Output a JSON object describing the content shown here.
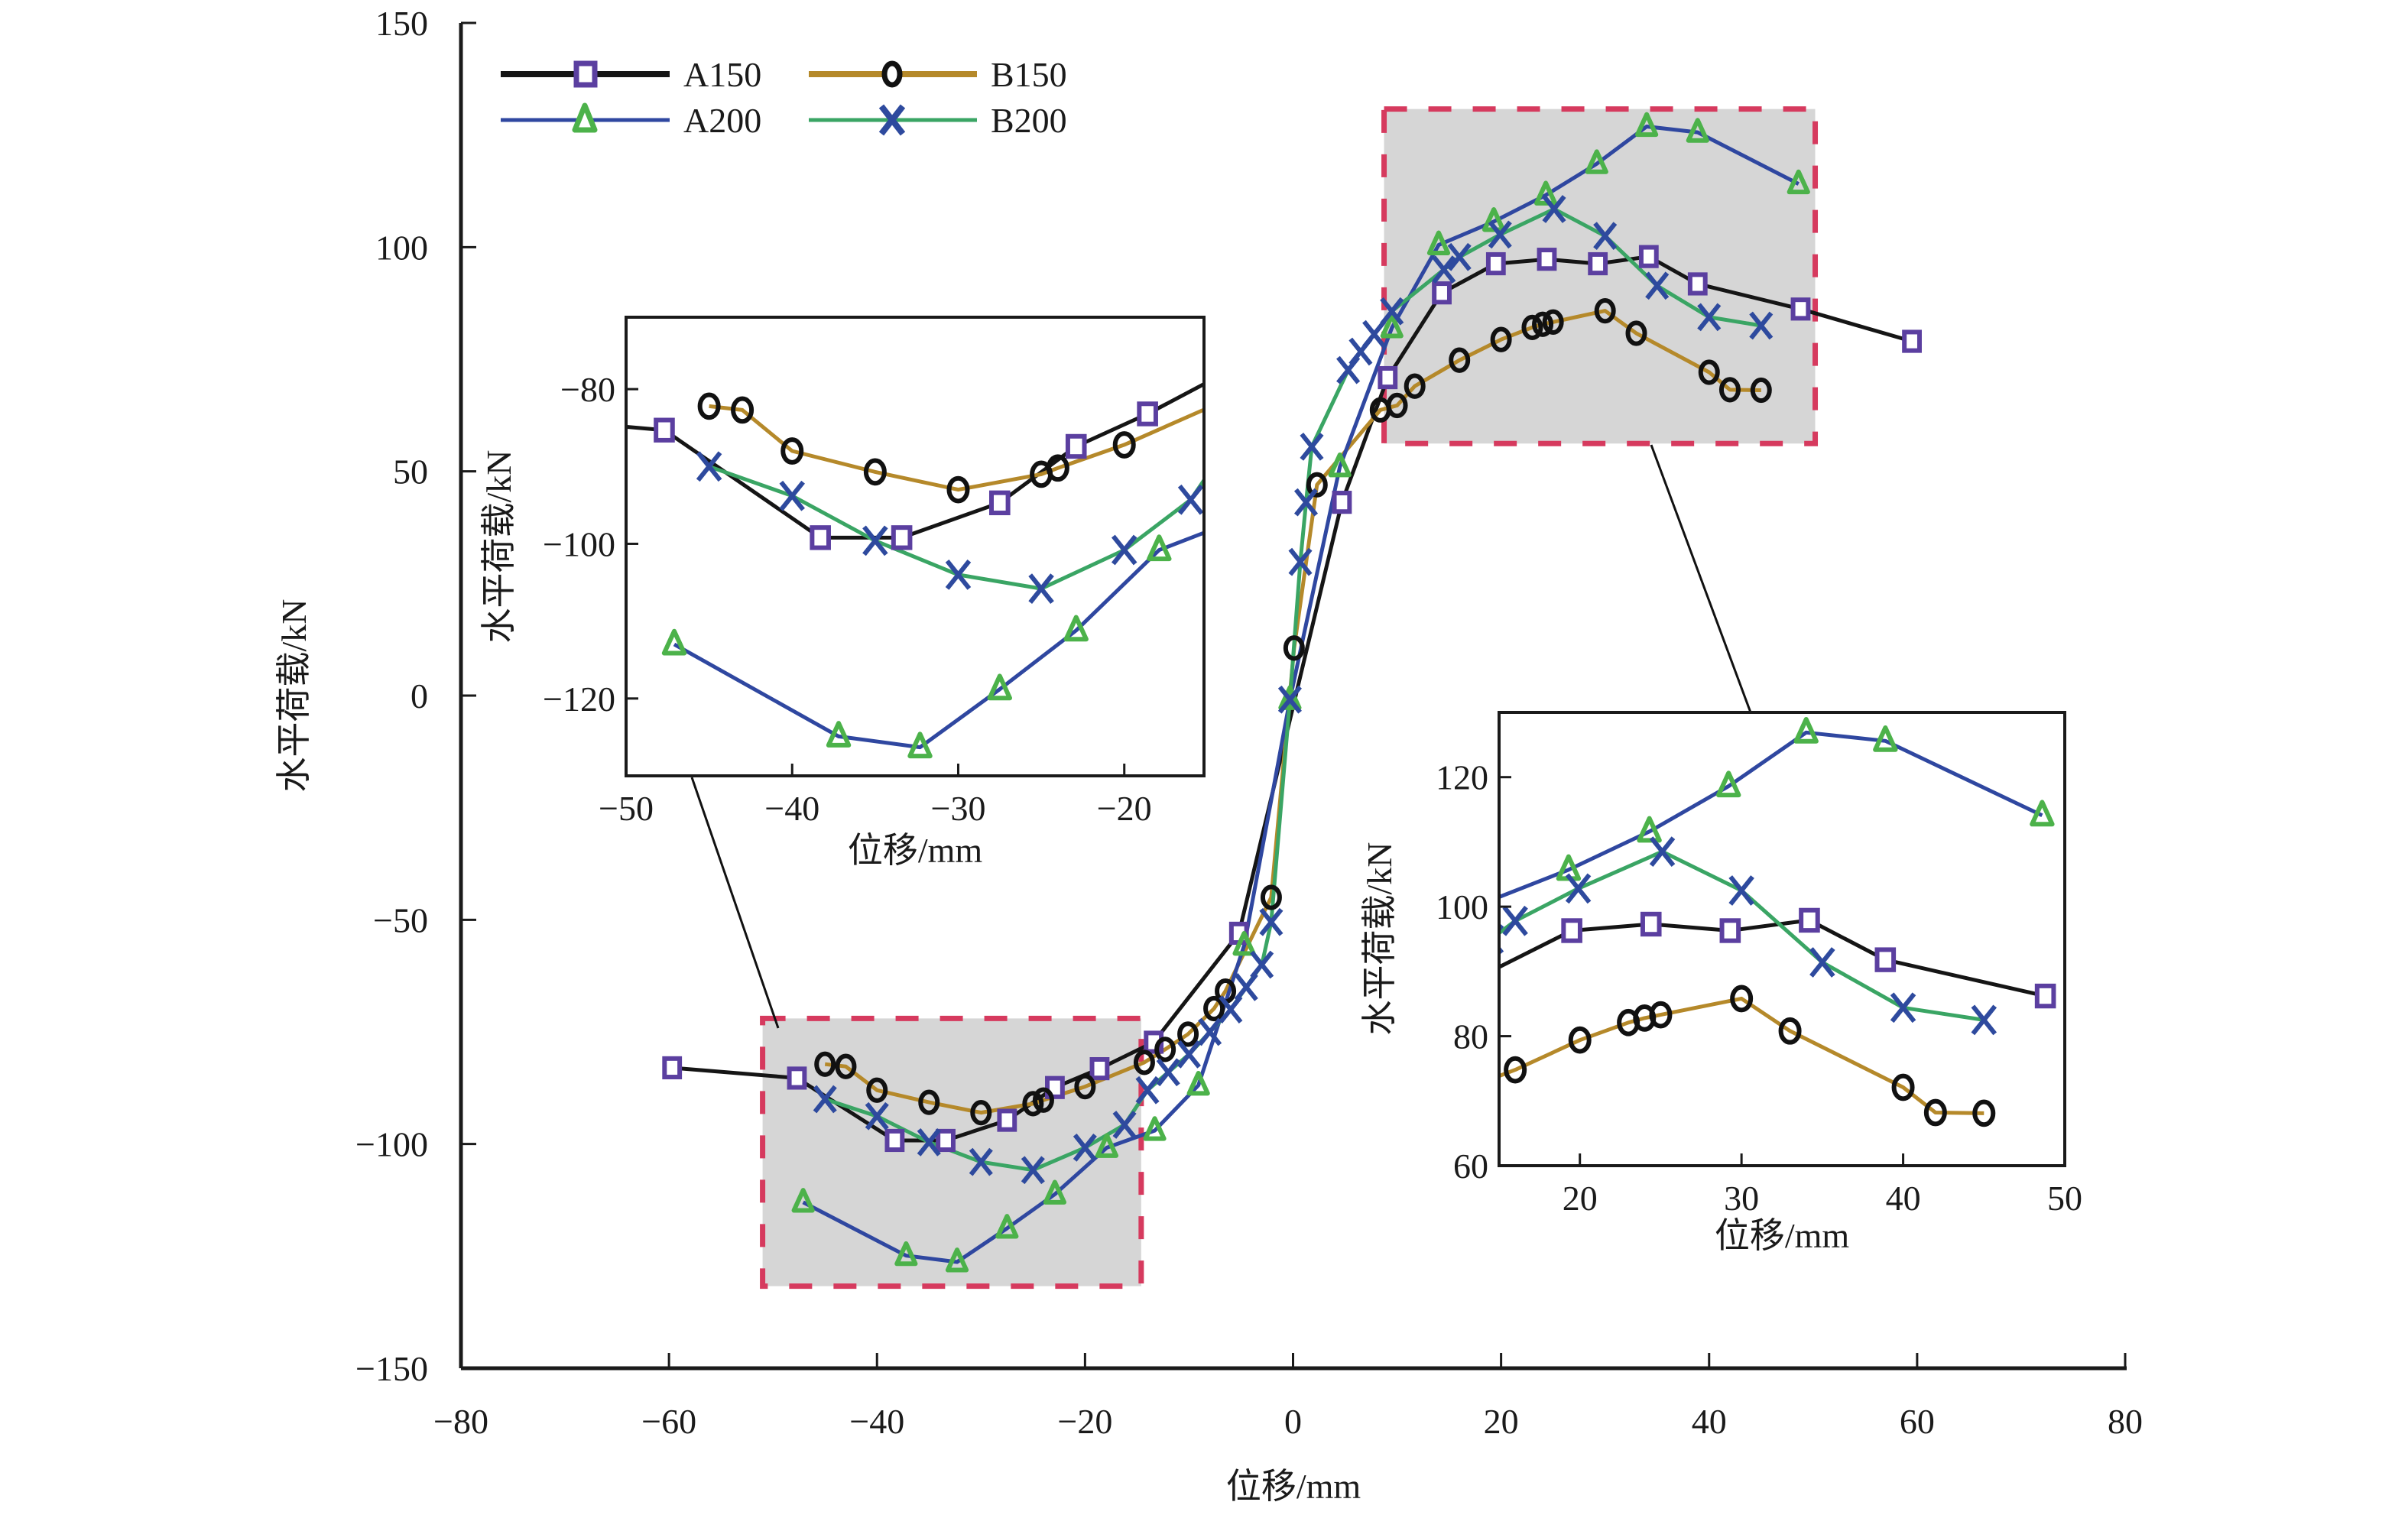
{
  "chart_data": {
    "type": "line",
    "title": "",
    "xlabel": "位移/mm",
    "ylabel": "水平荷载/kN",
    "xlim": [
      -80,
      80
    ],
    "ylim": [
      -150,
      150
    ],
    "xticks": [
      -80,
      -60,
      -40,
      -20,
      0,
      20,
      40,
      60,
      80
    ],
    "yticks": [
      -150,
      -100,
      -50,
      0,
      50,
      100,
      150
    ],
    "xtick_labels": [
      "−80",
      "−60",
      "−40",
      "−20",
      "0",
      "20",
      "40",
      "60",
      "80"
    ],
    "ytick_labels": [
      "−150",
      "−100",
      "−50",
      "0",
      "50",
      "100",
      "150"
    ],
    "grid": false,
    "legend": {
      "placement": "top-left",
      "columns": 2,
      "entries": [
        "A150",
        "B150",
        "A200",
        "B200"
      ]
    },
    "series": [
      {
        "name": "A150",
        "line_color": "#151515",
        "marker": "square",
        "marker_color": "#5b3fa0",
        "x": [
          -59.7,
          -47.7,
          -38.3,
          -33.4,
          -27.5,
          -22.9,
          -18.6,
          -13.4,
          -5.2,
          4.7,
          9.1,
          14.3,
          19.5,
          24.4,
          29.3,
          34.2,
          38.9,
          48.8,
          59.5
        ],
        "y": [
          -83,
          -85.3,
          -99.2,
          -99.2,
          -94.7,
          -87.4,
          -83.2,
          -77.3,
          -53,
          43.1,
          70.9,
          89.8,
          96.3,
          97.3,
          96.3,
          97.9,
          91.8,
          86.2,
          79
        ]
      },
      {
        "name": "B150",
        "line_color": "#b5892a",
        "marker": "circle",
        "marker_color": "#111111",
        "x": [
          -45,
          -43,
          -40,
          -35,
          -30,
          -25,
          -24,
          -20,
          -14.3,
          -12.3,
          -10.1,
          -7.6,
          -6.5,
          -2.1,
          0.1,
          2.3,
          8.4,
          10,
          11.7,
          16,
          20,
          23,
          24,
          25,
          30,
          33,
          40,
          42,
          45
        ],
        "y": [
          -82.2,
          -82.7,
          -88,
          -90.7,
          -93,
          -91,
          -90.2,
          -87.2,
          -81.8,
          -78.9,
          -75.5,
          -69.8,
          -65.9,
          -45,
          10.6,
          47,
          63.7,
          64.7,
          69,
          74.8,
          79.4,
          82.1,
          82.8,
          83.3,
          85.8,
          80.8,
          72.1,
          68.2,
          68.1
        ]
      },
      {
        "name": "A200",
        "line_color": "#2f47a0",
        "marker": "triangle",
        "marker_color": "#4cb24a",
        "x": [
          -47.1,
          -37.2,
          -32.3,
          -27.5,
          -22.9,
          -17.9,
          -13.3,
          -9.1,
          -4.7,
          -0.3,
          4.5,
          9.5,
          14,
          19.3,
          24.3,
          29.2,
          34,
          38.9,
          48.6
        ],
        "y": [
          -113,
          -124.9,
          -126.3,
          -118.8,
          -111.2,
          -100.8,
          -97,
          -86.9,
          -55.7,
          -0.9,
          51,
          82,
          100.5,
          105.7,
          111.6,
          118.6,
          126.9,
          125.6,
          114.1
        ]
      },
      {
        "name": "B200",
        "line_color": "#3aa564",
        "marker": "x",
        "marker_color": "#2e4a9e",
        "x": [
          -45,
          -40,
          -35,
          -30,
          -25,
          -20,
          -16.2,
          -14,
          -12,
          -10,
          -8,
          -6,
          -4.5,
          -3,
          -2.1,
          -0.3,
          0.7,
          1.25,
          1.8,
          5.3,
          6.5,
          7.8,
          9.5,
          14.5,
          16,
          19.9,
          25.1,
          30,
          35,
          40,
          45
        ],
        "y": [
          -90,
          -93.8,
          -99.6,
          -104,
          -105.8,
          -100.8,
          -95.7,
          -88,
          -84,
          -80,
          -75,
          -70,
          -65,
          -60,
          -50.5,
          -0.9,
          29.8,
          43.1,
          55.5,
          72.6,
          76.7,
          80.6,
          85.7,
          95,
          97.8,
          102.8,
          108.5,
          102.5,
          91.4,
          84.4,
          82.5
        ]
      }
    ],
    "zoom_regions": [
      {
        "name": "negative-peak-region",
        "xlim": [
          -51,
          -14.6
        ],
        "ylim": [
          -131.7,
          -72
        ],
        "highlight_color": "#d63a5e",
        "fill_color": "#d6d6d6"
      },
      {
        "name": "positive-peak-region",
        "xlim": [
          8.75,
          50.2
        ],
        "ylim": [
          56.2,
          130.8
        ],
        "highlight_color": "#d63a5e",
        "fill_color": "#d6d6d6"
      }
    ],
    "insets": [
      {
        "name": "inset-negative",
        "xlabel": "位移/mm",
        "ylabel": "水平荷载/kN",
        "xlim": [
          -50,
          -15.2
        ],
        "ylim": [
          -130,
          -70.7
        ],
        "xticks": [
          -50,
          -40,
          -30,
          -20
        ],
        "yticks": [
          -120,
          -100,
          -80
        ],
        "xtick_labels": [
          "−50",
          "−40",
          "−30",
          "−20"
        ],
        "ytick_labels": [
          "−120",
          "−100",
          "−80"
        ],
        "series": [
          {
            "name": "A150",
            "x": [
              -52,
              -47.7,
              -38.3,
              -33.4,
              -27.5,
              -22.9,
              -18.6,
              -13.4
            ],
            "y": [
              -84.5,
              -85.3,
              -99.2,
              -99.2,
              -94.7,
              -87.4,
              -83.2,
              -77.3
            ]
          },
          {
            "name": "B150",
            "x": [
              -45,
              -43,
              -40,
              -35,
              -30,
              -25,
              -24,
              -20,
              -14.3
            ],
            "y": [
              -82.2,
              -82.7,
              -88,
              -90.7,
              -93,
              -91,
              -90.2,
              -87.2,
              -81.8
            ]
          },
          {
            "name": "A200",
            "x": [
              -47.1,
              -37.2,
              -32.3,
              -27.5,
              -22.9,
              -17.9,
              -13.3
            ],
            "y": [
              -113,
              -124.9,
              -126.3,
              -118.8,
              -111.2,
              -100.8,
              -97
            ]
          },
          {
            "name": "B200",
            "x": [
              -45,
              -40,
              -35,
              -30,
              -25,
              -20,
              -16,
              -14
            ],
            "y": [
              -90,
              -93.8,
              -99.6,
              -104,
              -105.8,
              -100.8,
              -94.3,
              -88
            ]
          }
        ]
      },
      {
        "name": "inset-positive",
        "xlabel": "位移/mm",
        "ylabel": "水平荷载/kN",
        "xlim": [
          15,
          50
        ],
        "ylim": [
          60,
          130
        ],
        "xticks": [
          20,
          30,
          40,
          50
        ],
        "yticks": [
          60,
          80,
          100,
          120
        ],
        "xtick_labels": [
          "20",
          "30",
          "40",
          "50"
        ],
        "ytick_labels": [
          "60",
          "80",
          "100",
          "120"
        ],
        "series": [
          {
            "name": "A150",
            "x": [
              14.3,
              19.5,
              24.4,
              29.3,
              34.2,
              38.9,
              48.8
            ],
            "y": [
              89.8,
              96.3,
              97.3,
              96.3,
              97.9,
              91.8,
              86.2
            ]
          },
          {
            "name": "B150",
            "x": [
              12,
              16,
              20,
              23,
              24,
              25,
              30,
              33,
              40,
              42,
              45
            ],
            "y": [
              71,
              74.8,
              79.4,
              82.1,
              82.8,
              83.3,
              85.8,
              80.8,
              72.1,
              68.2,
              68.1
            ]
          },
          {
            "name": "A200",
            "x": [
              14,
              19.3,
              24.3,
              29.2,
              34,
              38.9,
              48.6
            ],
            "y": [
              100.5,
              105.7,
              111.6,
              118.6,
              126.9,
              125.6,
              114.1
            ]
          },
          {
            "name": "B200",
            "x": [
              14.5,
              16,
              19.9,
              25.1,
              30,
              35,
              40,
              45
            ],
            "y": [
              95,
              97.8,
              102.8,
              108.5,
              102.5,
              91.4,
              84.4,
              82.5
            ]
          }
        ]
      }
    ]
  }
}
